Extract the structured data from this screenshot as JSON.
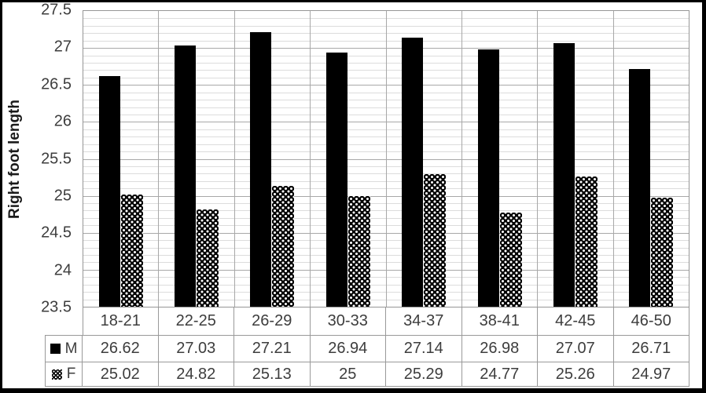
{
  "chart_data": {
    "type": "bar",
    "title": "",
    "xlabel": "",
    "ylabel": "Right foot length",
    "categories": [
      "18-21",
      "22-25",
      "26-29",
      "30-33",
      "34-37",
      "38-41",
      "42-45",
      "46-50"
    ],
    "series": [
      {
        "name": "M",
        "fill": "solid",
        "values": [
          26.62,
          27.03,
          27.21,
          26.94,
          27.14,
          26.98,
          27.07,
          26.71
        ]
      },
      {
        "name": "F",
        "fill": "dotted-pattern",
        "values": [
          25.02,
          24.82,
          25.13,
          25,
          25.29,
          24.77,
          25.26,
          24.97
        ]
      }
    ],
    "ylim": [
      23.5,
      27.5
    ],
    "y_ticks": [
      "27.5",
      "27",
      "26.5",
      "26",
      "25.5",
      "25",
      "24.5",
      "24",
      "23.5"
    ],
    "y_major_step": 0.5,
    "y_minor_step": 0.1,
    "grid": "horizontal minor+major gridlines, vertical category separators",
    "legend_position": "data-table-left-keys",
    "data_table_shown": true
  },
  "colors": {
    "bar_m": "#000000",
    "bar_f_background": "#000000",
    "bar_f_dots": "#ffffff",
    "grid_minor": "#dcdcdc",
    "grid_major": "#a8a8a8",
    "plot_border": "#969696",
    "table_border": "#999999",
    "text": "#3d3d3d",
    "frame": "#000000"
  }
}
